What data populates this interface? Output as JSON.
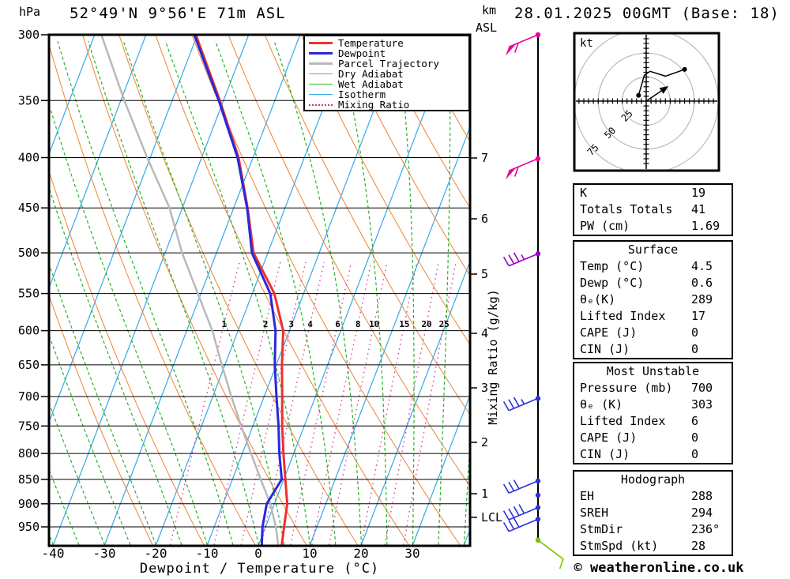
{
  "header": {
    "pressure_unit": "hPa",
    "title": "52°49'N 9°56'E 71m ASL",
    "datetime": "28.01.2025 00GMT (Base: 18)",
    "altitude_unit": "km",
    "altitude_ref": "ASL"
  },
  "axes": {
    "x_title": "Dewpoint / Temperature (°C)",
    "x_ticks": [
      -40,
      -30,
      -20,
      -10,
      0,
      10,
      20,
      30
    ],
    "pressure_ticks": [
      300,
      350,
      400,
      450,
      500,
      550,
      600,
      650,
      700,
      750,
      800,
      850,
      900,
      950
    ],
    "km_ticks": [
      7,
      6,
      5,
      4,
      3,
      2,
      1
    ],
    "lcl_label": "LCL",
    "mixing_axis_title": "Mixing Ratio (g/kg)",
    "mixing_ratio_values": [
      1,
      2,
      3,
      4,
      6,
      8,
      10,
      15,
      20,
      25
    ]
  },
  "legend": [
    {
      "label": "Temperature",
      "color": "#f03030",
      "style": "solid",
      "width": 3
    },
    {
      "label": "Dewpoint",
      "color": "#2828dc",
      "style": "solid",
      "width": 3
    },
    {
      "label": "Parcel Trajectory",
      "color": "#b9b9b9",
      "style": "solid",
      "width": 3
    },
    {
      "label": "Dry Adiabat",
      "color": "#ee8432",
      "style": "solid",
      "width": 1
    },
    {
      "label": "Wet Adiabat",
      "color": "#28b428",
      "style": "solid",
      "width": 1
    },
    {
      "label": "Isotherm",
      "color": "#35a8e6",
      "style": "solid",
      "width": 1
    },
    {
      "label": "Mixing Ratio",
      "color": "#d82e92",
      "style": "dotted",
      "width": 2
    }
  ],
  "hodograph": {
    "unit": "kt",
    "ring_labels": [
      25,
      50,
      75
    ],
    "ring_step_kt": 25
  },
  "tables": [
    {
      "rows": [
        [
          "K",
          "19"
        ],
        [
          "Totals Totals",
          "41"
        ],
        [
          "PW (cm)",
          "1.69"
        ]
      ]
    },
    {
      "header": "Surface",
      "rows": [
        [
          "Temp (°C)",
          "4.5"
        ],
        [
          "Dewp (°C)",
          "0.6"
        ],
        [
          "θₑ(K)",
          "289"
        ],
        [
          "Lifted Index",
          "17"
        ],
        [
          "CAPE (J)",
          "0"
        ],
        [
          "CIN (J)",
          "0"
        ]
      ]
    },
    {
      "header": "Most Unstable",
      "rows": [
        [
          "Pressure (mb)",
          "700"
        ],
        [
          "θₑ (K)",
          "303"
        ],
        [
          "Lifted Index",
          "6"
        ],
        [
          "CAPE (J)",
          "0"
        ],
        [
          "CIN (J)",
          "0"
        ]
      ]
    },
    {
      "header": "Hodograph",
      "rows": [
        [
          "EH",
          "288"
        ],
        [
          "SREH",
          "294"
        ],
        [
          "StmDir",
          "236°"
        ],
        [
          "StmSpd (kt)",
          "28"
        ]
      ]
    }
  ],
  "footer": {
    "copyright": "© weatheronline.co.uk"
  },
  "chart_data": {
    "type": "line",
    "subtype": "skew-t-log-p",
    "title": "52°49'N 9°56'E 71m ASL",
    "xlabel": "Dewpoint / Temperature (°C)",
    "ylabel": "hPa",
    "x_range_C": [
      -40,
      40
    ],
    "pressure_range_hPa": [
      300,
      991
    ],
    "pressure_hPa": [
      300,
      350,
      400,
      450,
      500,
      550,
      600,
      650,
      700,
      750,
      800,
      850,
      900,
      950,
      991
    ],
    "series": [
      {
        "name": "Temperature",
        "color": "#f03030",
        "values_C": [
          -50.3,
          -40.7,
          -32.8,
          -27.3,
          -22.8,
          -15.7,
          -11.2,
          -8.9,
          -6.5,
          -4.3,
          -2.0,
          0.3,
          2.5,
          3.6,
          4.5
        ]
      },
      {
        "name": "Dewpoint",
        "color": "#2828dc",
        "values_C": [
          -50.6,
          -40.9,
          -33.0,
          -27.4,
          -23.1,
          -16.5,
          -12.7,
          -10.3,
          -7.6,
          -5.0,
          -2.8,
          -0.4,
          -1.5,
          -0.6,
          0.6
        ]
      },
      {
        "name": "Parcel Trajectory",
        "color": "#b9b9b9",
        "values_C": [
          -68.7,
          -59.3,
          -50.6,
          -42.5,
          -36.7,
          -30.6,
          -25.0,
          -20.6,
          -16.4,
          -12.3,
          -8.3,
          -4.5,
          -0.8,
          2.0,
          3.8
        ]
      }
    ],
    "lcl_pressure_hPa": 929,
    "isotherm_range_C": [
      -110,
      40
    ],
    "isotherm_step_C": 10,
    "dry_adiabat_range_C": [
      -20,
      200
    ],
    "dry_adiabat_step_C": 10,
    "wet_adiabat_range_C": [
      -65,
      40
    ],
    "wet_adiabat_step_C": 5,
    "wind_barbs": [
      {
        "pressure_hPa": 300,
        "color": "#f0009c",
        "pennants": 1,
        "full": 1,
        "half": 0,
        "dir": "sw",
        "feather": "down"
      },
      {
        "pressure_hPa": 401,
        "color": "#f0009c",
        "pennants": 1,
        "full": 1,
        "half": 0,
        "dir": "sw",
        "feather": "down"
      },
      {
        "pressure_hPa": 501,
        "color": "#9a00c8",
        "pennants": 0,
        "full": 3,
        "half": 1,
        "dir": "sw",
        "feather": "up"
      },
      {
        "pressure_hPa": 703,
        "color": "#2a32e0",
        "pennants": 0,
        "full": 3,
        "half": 1,
        "dir": "sw",
        "feather": "up"
      },
      {
        "pressure_hPa": 853,
        "color": "#2a32e0",
        "pennants": 0,
        "full": 3,
        "half": 0,
        "dir": "sw",
        "feather": "up"
      },
      {
        "pressure_hPa": 882,
        "color": "#2a32e0",
        "pennants": 0,
        "full": 0,
        "half": 0,
        "dir": "sw",
        "feather": "up"
      },
      {
        "pressure_hPa": 908,
        "color": "#2a32e0",
        "pennants": 0,
        "full": 4,
        "half": 0,
        "dir": "sw",
        "feather": "up"
      },
      {
        "pressure_hPa": 933,
        "color": "#2a32e0",
        "pennants": 0,
        "full": 3,
        "half": 0,
        "dir": "sw",
        "feather": "up"
      },
      {
        "pressure_hPa": 980,
        "color": "#7dc400",
        "pennants": 0,
        "full": 1,
        "half": 0,
        "dir": "se",
        "feather": "down"
      }
    ],
    "hodograph_trace_kt": [
      [
        40,
        33
      ],
      [
        20,
        26
      ],
      [
        4,
        31
      ],
      [
        -2,
        27
      ],
      [
        -8,
        6
      ]
    ],
    "storm_motion": {
      "dir_deg": 236,
      "speed_kt": 28
    }
  }
}
